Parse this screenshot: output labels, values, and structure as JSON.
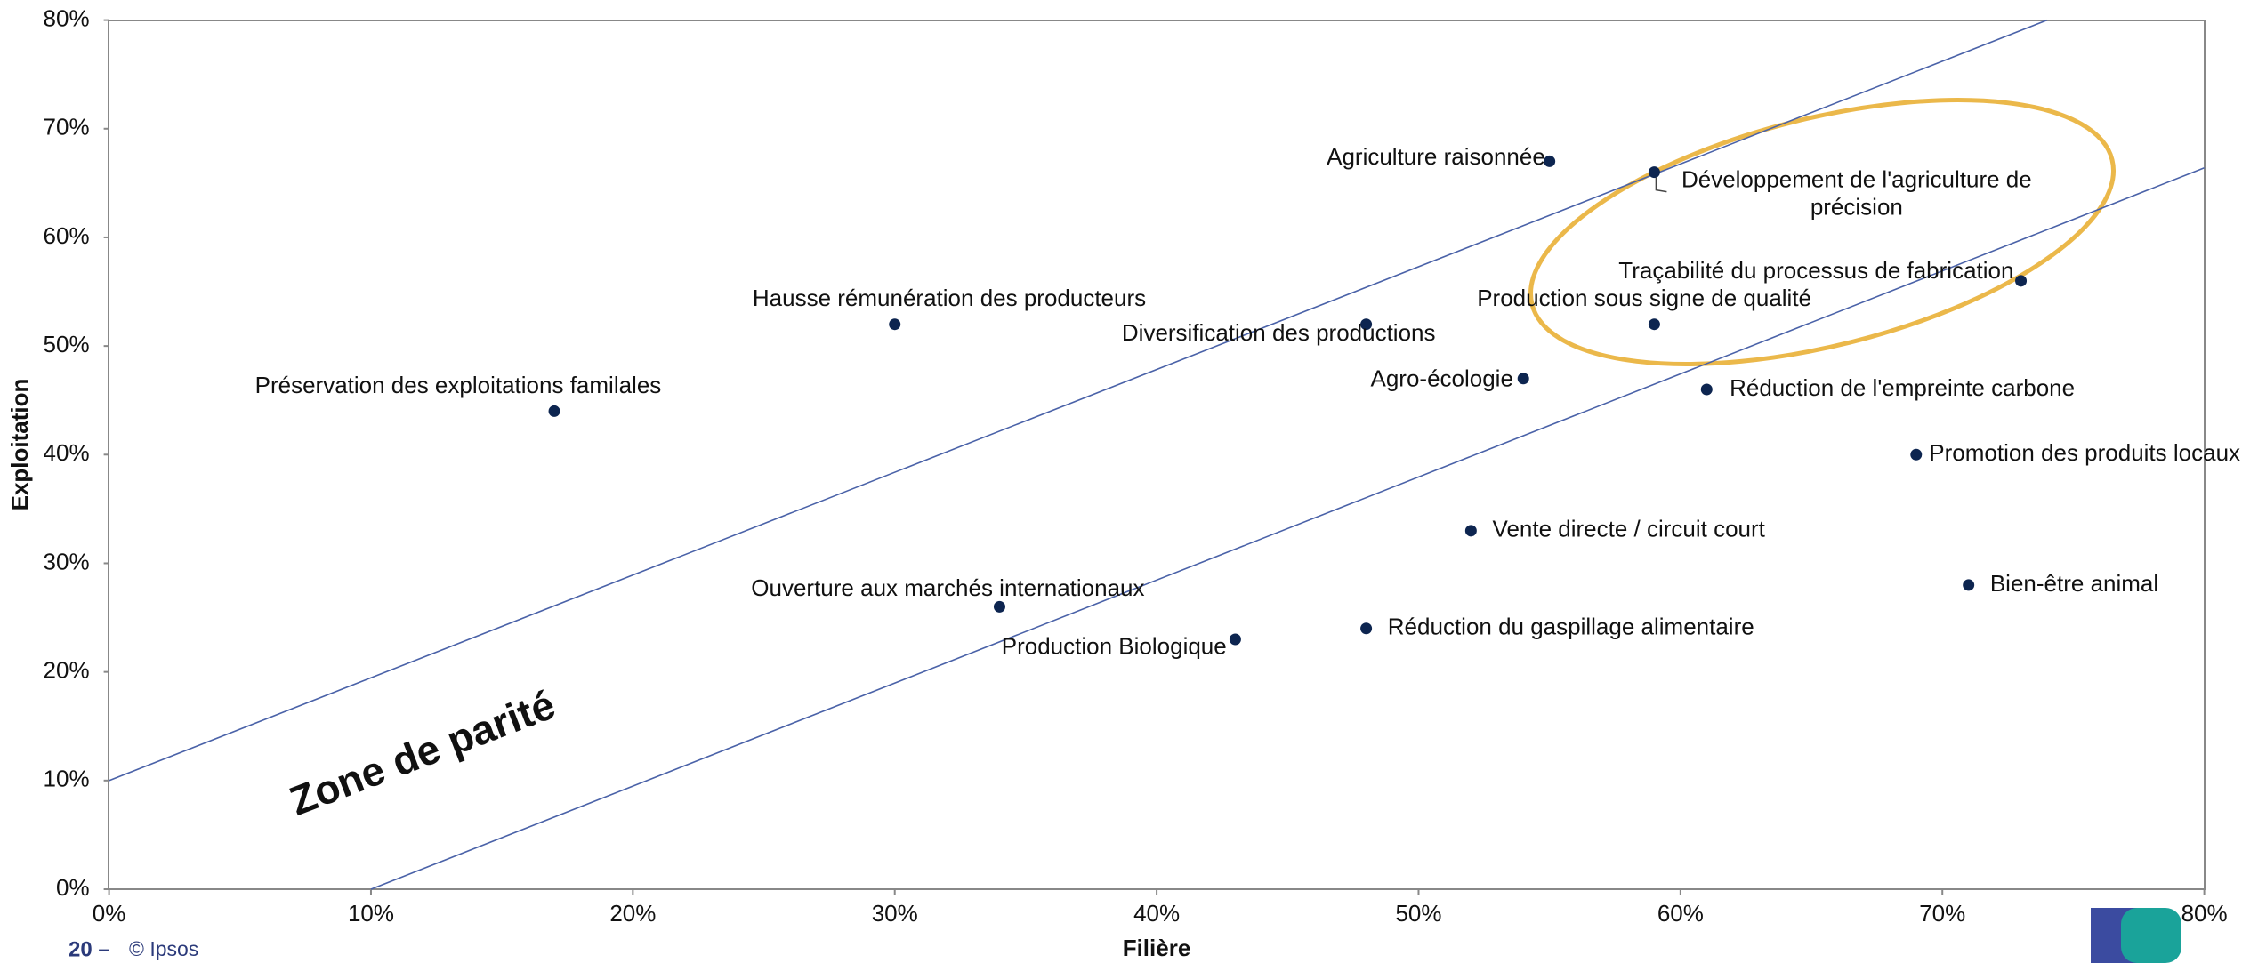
{
  "chart_data": {
    "type": "scatter",
    "xlabel": "Filière",
    "ylabel": "Exploitation",
    "annotation": "Zone de parité",
    "footer": {
      "page": "20 –",
      "copyright": "© Ipsos"
    },
    "color": "#0d2550",
    "points": [
      {
        "label": "Préservation des exploitations familales",
        "x": 17,
        "y": 44
      },
      {
        "label": "Hausse rémunération des producteurs",
        "x": 30,
        "y": 52
      },
      {
        "label": "Ouverture aux marchés internationaux",
        "x": 34,
        "y": 26
      },
      {
        "label": "Production Biologique",
        "x": 43,
        "y": 23
      },
      {
        "label": "Diversification des productions",
        "x": 48,
        "y": 52
      },
      {
        "label": "Réduction du gaspillage alimentaire",
        "x": 48,
        "y": 24
      },
      {
        "label": "Vente directe / circuit court",
        "x": 52,
        "y": 33
      },
      {
        "label": "Agro-écologie",
        "x": 54,
        "y": 47
      },
      {
        "label": "Agriculture raisonnée",
        "x": 55,
        "y": 67
      },
      {
        "label": "Développement de l'agriculture de précision",
        "x": 59,
        "y": 66
      },
      {
        "label": "Production sous signe de qualité",
        "x": 59,
        "y": 52
      },
      {
        "label": "Réduction de l'empreinte carbone",
        "x": 61,
        "y": 46
      },
      {
        "label": "Promotion des produits locaux",
        "x": 69,
        "y": 40
      },
      {
        "label": "Bien-être animal",
        "x": 71,
        "y": 28
      },
      {
        "label": "Traçabilité du processus de fabrication",
        "x": 73,
        "y": 56
      }
    ],
    "lines": [
      {
        "color": "#4a62a8",
        "x": [
          0,
          74
        ],
        "y": [
          10,
          80
        ]
      },
      {
        "color": "#4a62a8",
        "x": [
          10,
          80
        ],
        "y": [
          0,
          66.4
        ]
      }
    ],
    "xlim": [
      0,
      80
    ],
    "ylim": [
      0,
      80
    ],
    "xticks": [
      {
        "value": 0,
        "label": "0%"
      },
      {
        "value": 10,
        "label": "10%"
      },
      {
        "value": 20,
        "label": "20%"
      },
      {
        "value": 30,
        "label": "30%"
      },
      {
        "value": 40,
        "label": "40%"
      },
      {
        "value": 50,
        "label": "50%"
      },
      {
        "value": 60,
        "label": "60%"
      },
      {
        "value": 70,
        "label": "70%"
      },
      {
        "value": 80,
        "label": "80%"
      }
    ],
    "yticks": [
      {
        "value": 0,
        "label": "0%"
      },
      {
        "value": 10,
        "label": "10%"
      },
      {
        "value": 20,
        "label": "20%"
      },
      {
        "value": 30,
        "label": "30%"
      },
      {
        "value": 40,
        "label": "40%"
      },
      {
        "value": 50,
        "label": "50%"
      },
      {
        "value": 60,
        "label": "60%"
      },
      {
        "value": 70,
        "label": "70%"
      },
      {
        "value": 80,
        "label": "80%"
      }
    ]
  }
}
